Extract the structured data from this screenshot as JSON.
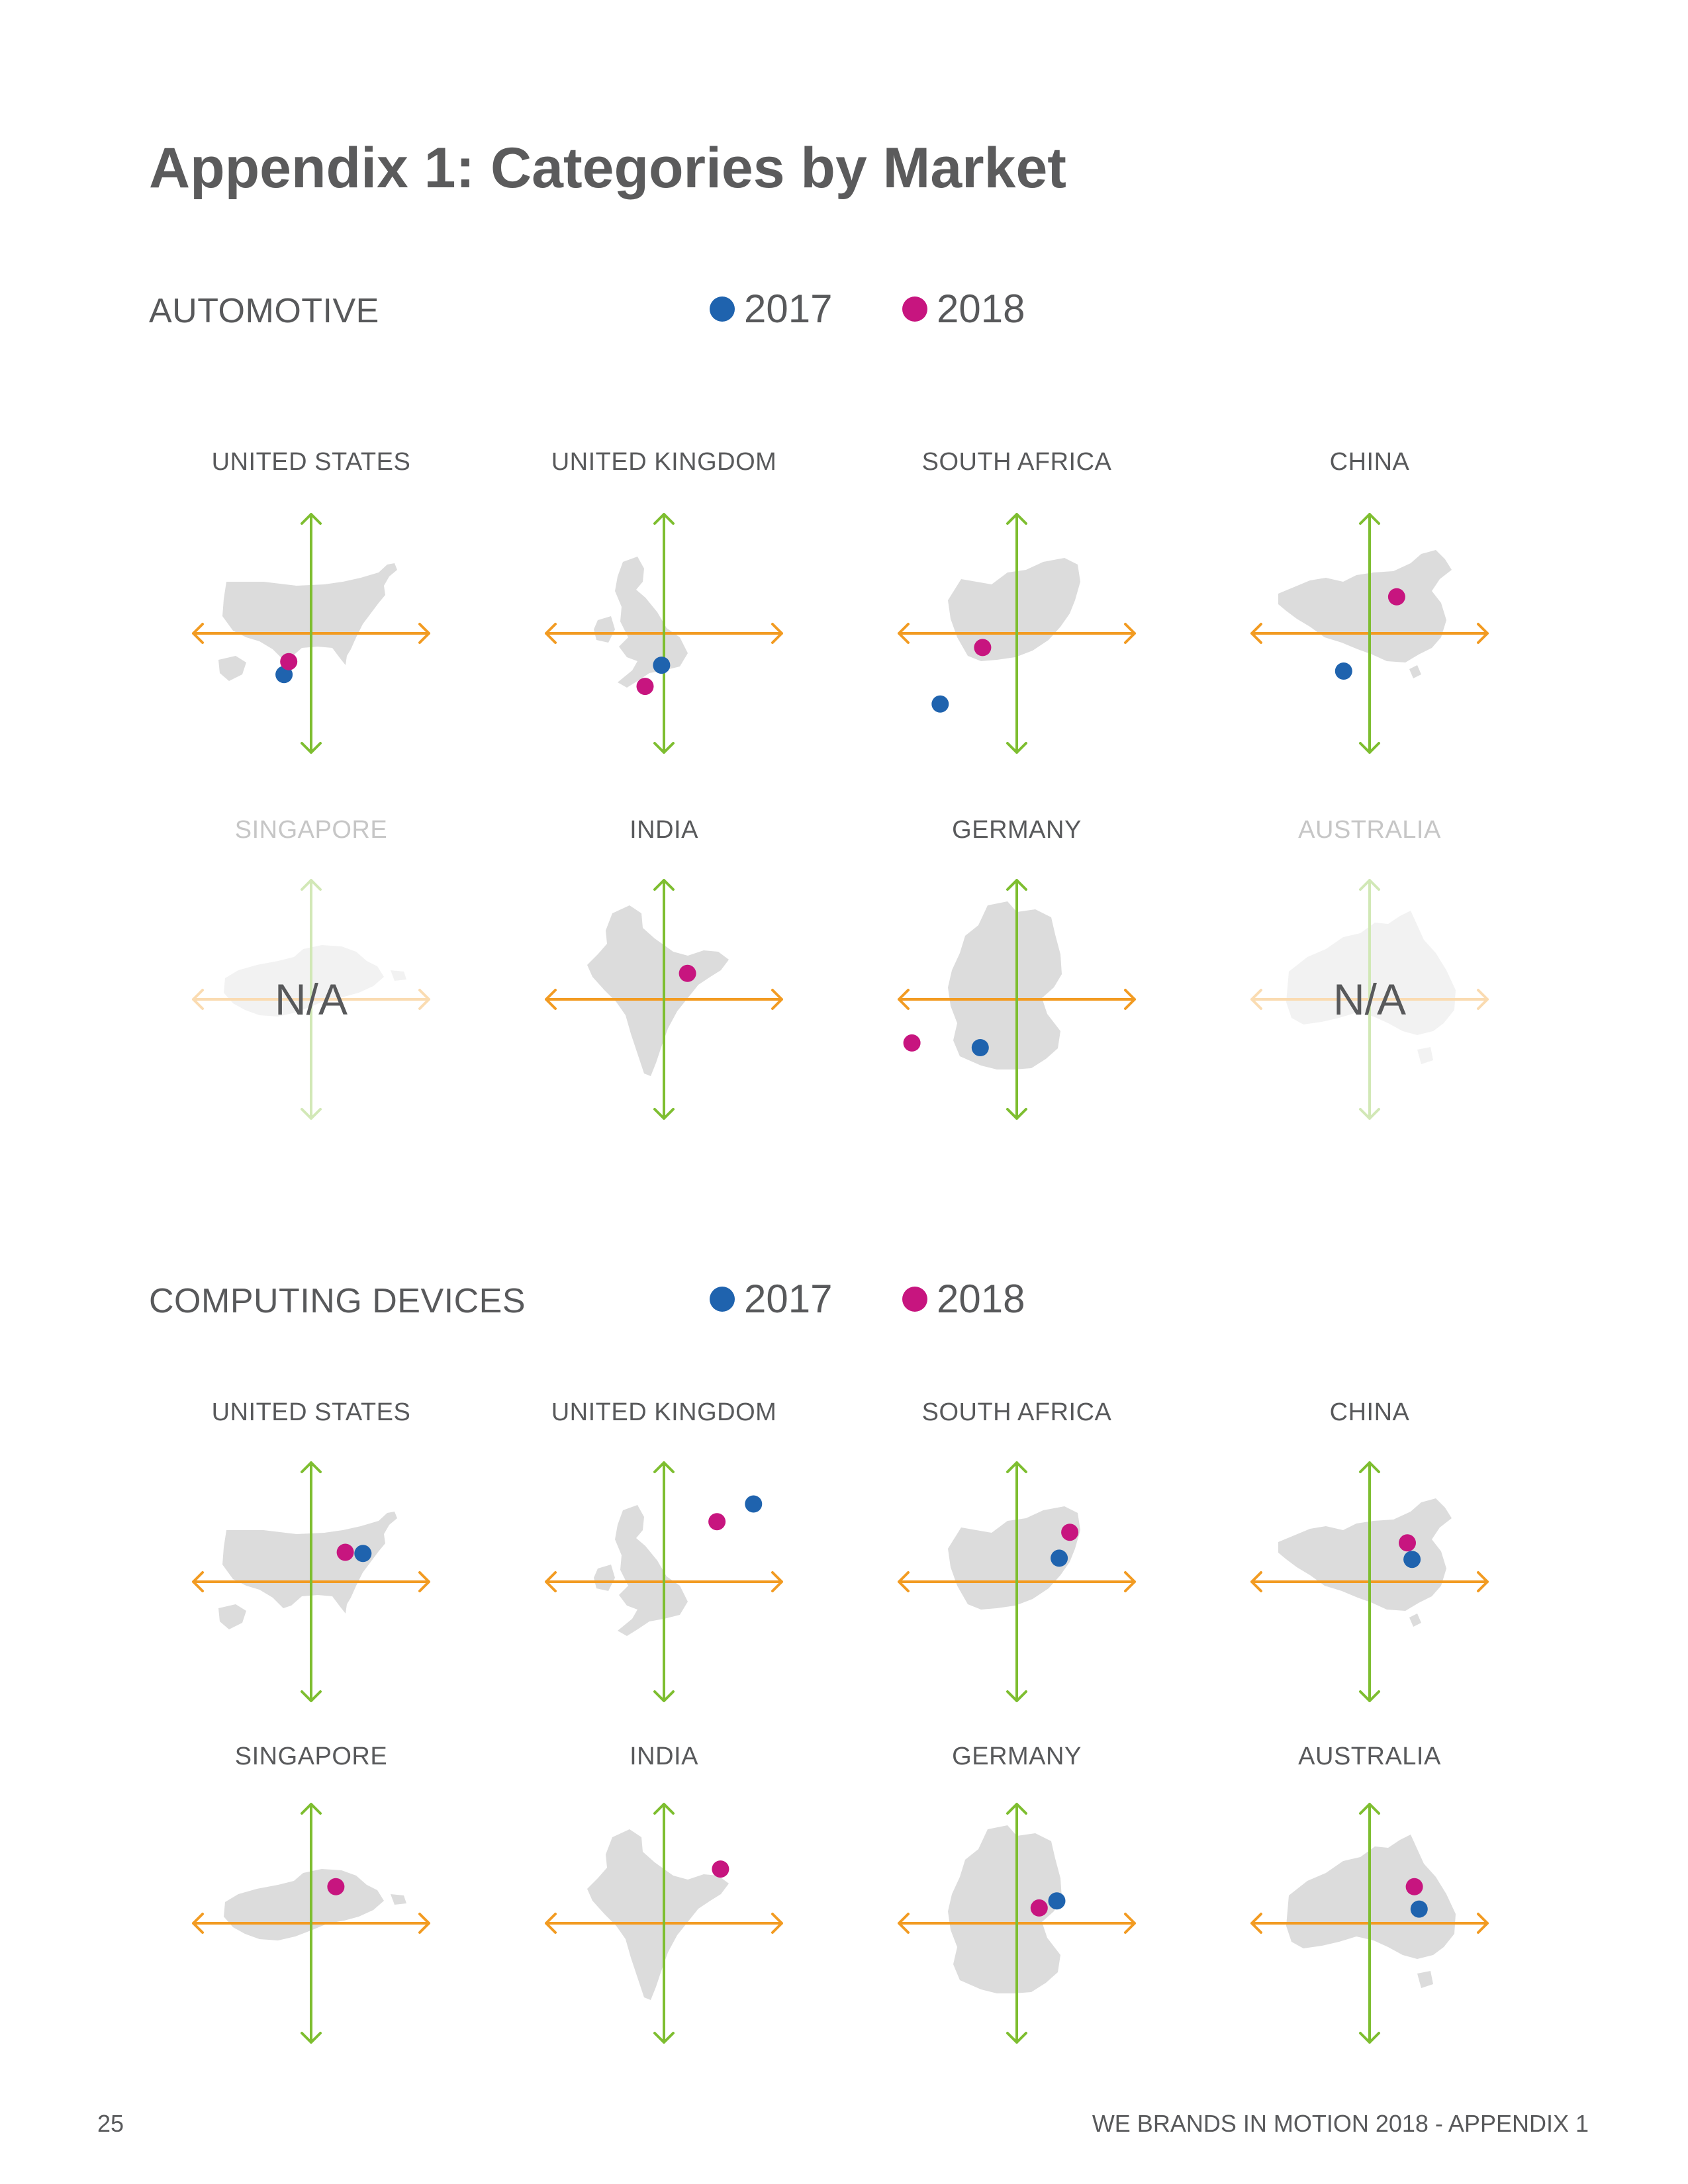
{
  "page": {
    "title": "Appendix 1: Categories by Market",
    "page_number": "25",
    "footer": "WE BRANDS IN MOTION 2018 - APPENDIX 1"
  },
  "legend": {
    "items": [
      {
        "label": "2017",
        "color": "#1f63ae"
      },
      {
        "label": "2018",
        "color": "#c7157f"
      }
    ]
  },
  "colors": {
    "x_axis": "#f29b22",
    "y_axis": "#7ebe30",
    "map": "#dcdcdc"
  },
  "na_label": "N/A",
  "chart_data": [
    {
      "type": "scatter",
      "title": "AUTOMOTIVE",
      "xlim": [
        -1,
        1
      ],
      "ylim": [
        -1,
        1
      ],
      "series": [
        "2017",
        "2018"
      ],
      "markets": [
        {
          "name": "UNITED STATES",
          "shape": "usa",
          "available": true,
          "points": {
            "2017": [
              -0.23,
              -0.35
            ],
            "2018": [
              -0.19,
              -0.24
            ]
          }
        },
        {
          "name": "UNITED KINGDOM",
          "shape": "uk",
          "available": true,
          "points": {
            "2017": [
              -0.02,
              -0.27
            ],
            "2018": [
              -0.16,
              -0.45
            ]
          }
        },
        {
          "name": "SOUTH AFRICA",
          "shape": "south_africa",
          "available": true,
          "points": {
            "2017": [
              -0.65,
              -0.6
            ],
            "2018": [
              -0.29,
              -0.12
            ]
          }
        },
        {
          "name": "CHINA",
          "shape": "china",
          "available": true,
          "points": {
            "2017": [
              -0.22,
              -0.32
            ],
            "2018": [
              0.23,
              0.31
            ]
          }
        },
        {
          "name": "SINGAPORE",
          "shape": "singapore",
          "available": false,
          "points": {}
        },
        {
          "name": "INDIA",
          "shape": "india",
          "available": true,
          "points": {
            "2018": [
              0.2,
              0.22
            ]
          }
        },
        {
          "name": "GERMANY",
          "shape": "germany",
          "available": true,
          "points": {
            "2017": [
              -0.31,
              -0.41
            ],
            "2018": [
              -0.89,
              -0.37
            ]
          }
        },
        {
          "name": "AUSTRALIA",
          "shape": "australia",
          "available": false,
          "points": {}
        }
      ]
    },
    {
      "type": "scatter",
      "title": "COMPUTING DEVICES",
      "xlim": [
        -1,
        1
      ],
      "ylim": [
        -1,
        1
      ],
      "series": [
        "2017",
        "2018"
      ],
      "markets": [
        {
          "name": "UNITED STATES",
          "shape": "usa",
          "available": true,
          "points": {
            "2017": [
              0.44,
              0.24
            ],
            "2018": [
              0.29,
              0.25
            ]
          }
        },
        {
          "name": "UNITED KINGDOM",
          "shape": "uk",
          "available": true,
          "points": {
            "2017": [
              0.76,
              0.66
            ],
            "2018": [
              0.45,
              0.51
            ]
          }
        },
        {
          "name": "SOUTH AFRICA",
          "shape": "south_africa",
          "available": true,
          "points": {
            "2017": [
              0.36,
              0.2
            ],
            "2018": [
              0.45,
              0.42
            ]
          }
        },
        {
          "name": "CHINA",
          "shape": "china",
          "available": true,
          "points": {
            "2017": [
              0.36,
              0.19
            ],
            "2018": [
              0.32,
              0.33
            ]
          }
        },
        {
          "name": "SINGAPORE",
          "shape": "singapore",
          "available": true,
          "points": {
            "2018": [
              0.21,
              0.31
            ]
          }
        },
        {
          "name": "INDIA",
          "shape": "india",
          "available": true,
          "points": {
            "2018": [
              0.48,
              0.46
            ]
          }
        },
        {
          "name": "GERMANY",
          "shape": "germany",
          "available": true,
          "points": {
            "2017": [
              0.34,
              0.19
            ],
            "2018": [
              0.19,
              0.13
            ]
          }
        },
        {
          "name": "AUSTRALIA",
          "shape": "australia",
          "available": true,
          "points": {
            "2017": [
              0.42,
              0.12
            ],
            "2018": [
              0.38,
              0.31
            ]
          }
        }
      ]
    }
  ]
}
